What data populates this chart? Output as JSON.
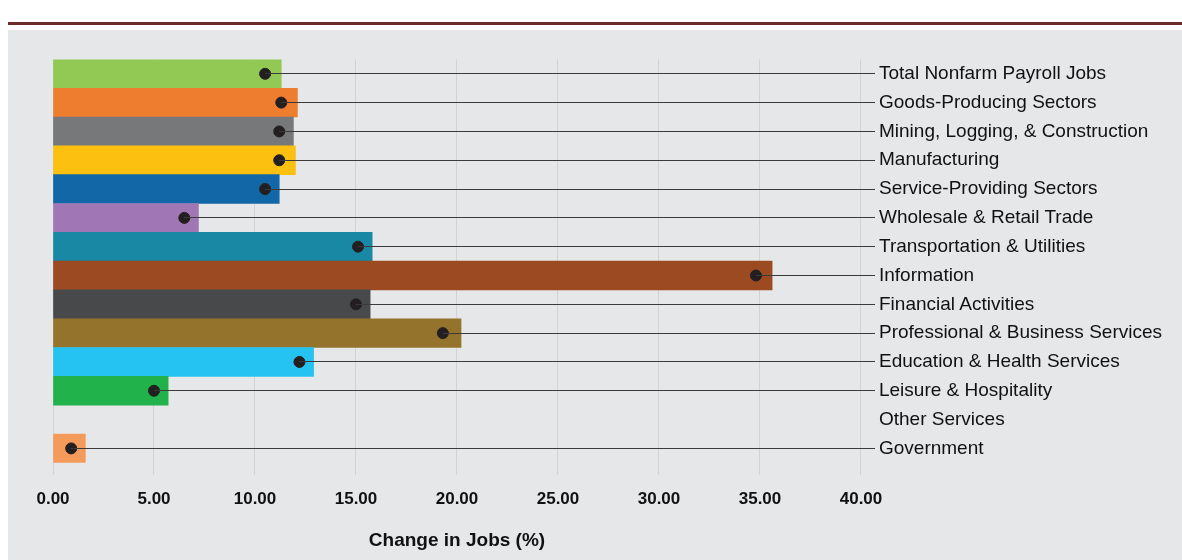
{
  "chart_data": {
    "type": "bar",
    "orientation": "horizontal",
    "xlabel": "Change in Jobs (%)",
    "categories": [
      "Total Nonfarm Payroll Jobs",
      "Goods-Producing Sectors",
      "Mining, Logging, & Construction",
      "Manufacturing",
      "Service-Providing Sectors",
      "Wholesale & Retail Trade",
      "Transportation & Utilities",
      "Information",
      "Financial Activities",
      "Professional & Business Services",
      "Education & Health Services",
      "Leisure & Hospitality",
      "Other Services",
      "Government"
    ],
    "series": [
      {
        "colors": [
          "#92c954",
          "#ee7d30",
          "#77787a",
          "#fbc010",
          "#1267a6",
          "#a077b4",
          "#1888a5",
          "#9b4a22",
          "#48494b",
          "#94742d",
          "#25c3f2",
          "#21b24c",
          "#f49a5b",
          "#f49a5b"
        ],
        "values": [
          11.3,
          12.1,
          11.9,
          12.0,
          11.2,
          7.2,
          15.8,
          35.6,
          15.7,
          20.2,
          12.9,
          5.7,
          null,
          1.6
        ]
      },
      {
        "type": "scatter",
        "color": "#231f20",
        "values": [
          10.5,
          11.3,
          11.2,
          11.2,
          10.5,
          6.5,
          15.1,
          34.8,
          15.0,
          19.3,
          12.2,
          5.0,
          null,
          0.9
        ]
      }
    ],
    "xlim": [
      0,
      40
    ],
    "xticks": [
      {
        "value": 0,
        "label": "0.00"
      },
      {
        "value": 5,
        "label": "5.00"
      },
      {
        "value": 10,
        "label": "10.00"
      },
      {
        "value": 15,
        "label": "15.00"
      },
      {
        "value": 20,
        "label": "20.00"
      },
      {
        "value": 25,
        "label": "25.00"
      },
      {
        "value": 30,
        "label": "30.00"
      },
      {
        "value": 35,
        "label": "35.00"
      },
      {
        "value": 40,
        "label": "40.00"
      }
    ],
    "grid": "x",
    "legend": false,
    "marker": "circle"
  }
}
